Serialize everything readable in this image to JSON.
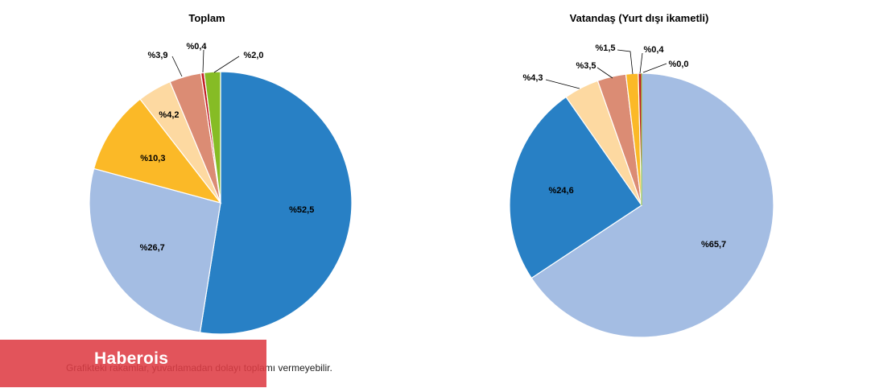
{
  "chart_data": [
    {
      "type": "pie",
      "title": "Toplam",
      "slices": [
        {
          "label": "%52,5",
          "value": 52.5,
          "color": "#2880C5"
        },
        {
          "label": "%26,7",
          "value": 26.7,
          "color": "#A4BDE3"
        },
        {
          "label": "%10,3",
          "value": 10.3,
          "color": "#FBB927"
        },
        {
          "label": "%4,2",
          "value": 4.2,
          "color": "#FDD9A1"
        },
        {
          "label": "%3,9",
          "value": 3.9,
          "color": "#DB8C74"
        },
        {
          "label": "%0,4",
          "value": 0.4,
          "color": "#C21F24"
        },
        {
          "label": "%2,0",
          "value": 2.0,
          "color": "#86BC25"
        }
      ]
    },
    {
      "type": "pie",
      "title": "Vatandaş (Yurt dışı ikametli)",
      "slices": [
        {
          "label": "%65,7",
          "value": 65.7,
          "color": "#A4BDE3"
        },
        {
          "label": "%24,6",
          "value": 24.6,
          "color": "#2880C5"
        },
        {
          "label": "%4,3",
          "value": 4.3,
          "color": "#FDD9A1"
        },
        {
          "label": "%3,5",
          "value": 3.5,
          "color": "#DB8C74"
        },
        {
          "label": "%1,5",
          "value": 1.5,
          "color": "#FBB927"
        },
        {
          "label": "%0,4",
          "value": 0.4,
          "color": "#C21F24"
        },
        {
          "label": "%0,0",
          "value": 0.0,
          "color": "#86BC25"
        }
      ]
    }
  ],
  "footnote": "Grafikteki rakamlar, yuvarlamadan dolayı toplamı vermeyebilir.",
  "watermark": "Haberois"
}
